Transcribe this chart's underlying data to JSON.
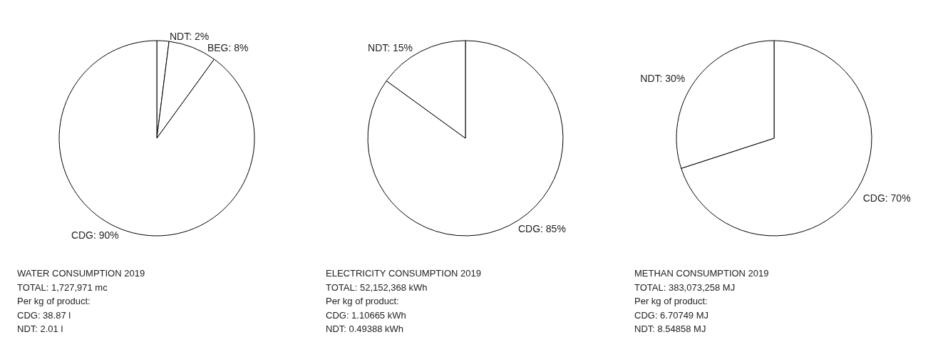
{
  "chart_data": [
    {
      "type": "pie",
      "title": "WATER CONSUMPTION 2019",
      "categories": [
        "NDT",
        "BEG",
        "CDG"
      ],
      "values": [
        2,
        8,
        90
      ],
      "value_labels": [
        "2%",
        "8%",
        "90%"
      ],
      "colors": [
        "#ffffff",
        "#ffffff",
        "#ffffff"
      ],
      "legend": false,
      "annotations": [
        "TOTAL: 1,727,971 mc",
        "Per kg of product:",
        "CDG: 38.87 l",
        "NDT: 2.01 l"
      ]
    },
    {
      "type": "pie",
      "title": "ELECTRICITY CONSUMPTION 2019",
      "categories": [
        "CDG",
        "NDT"
      ],
      "values": [
        85,
        15
      ],
      "value_labels": [
        "85%",
        "15%"
      ],
      "colors": [
        "#ffffff",
        "#ffffff"
      ],
      "legend": false,
      "annotations": [
        "TOTAL: 52,152,368 kWh",
        "Per kg of product:",
        "CDG: 1.10665 kWh",
        "NDT: 0.49388 kWh"
      ]
    },
    {
      "type": "pie",
      "title": "METHAN CONSUMPTION 2019",
      "categories": [
        "CDG",
        "NDT"
      ],
      "values": [
        70,
        30
      ],
      "value_labels": [
        "70%",
        "30%"
      ],
      "colors": [
        "#ffffff",
        "#ffffff"
      ],
      "legend": false,
      "annotations": [
        "TOTAL: 383,073,258 MJ",
        "Per kg of product:",
        "CDG: 6.70749 MJ",
        "NDT: 8.54858 MJ"
      ]
    }
  ]
}
